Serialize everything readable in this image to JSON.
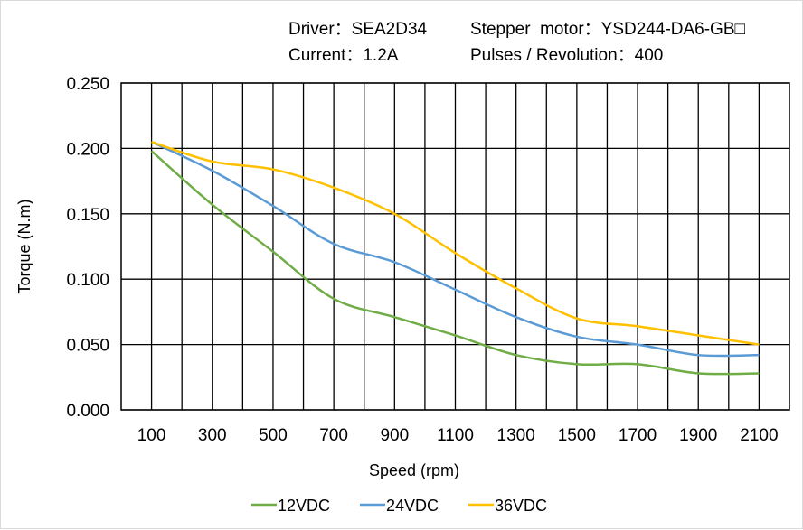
{
  "header": {
    "driver": "Driver：SEA2D34",
    "motor": "Stepper  motor：YSD244-DA6-GB□",
    "current": "Current：1.2A",
    "pulses": "Pulses / Revolution：400"
  },
  "chart_data": {
    "type": "line",
    "title": "",
    "xlabel": "Speed  (rpm)",
    "ylabel": "Torque (N.m)",
    "xlim": [
      0,
      2200
    ],
    "ylim": [
      0,
      0.25
    ],
    "xticks": [
      100,
      300,
      500,
      700,
      900,
      1100,
      1300,
      1500,
      1700,
      1900,
      2100
    ],
    "xtick_labels": [
      "100",
      "300",
      "500",
      "700",
      "900",
      "1100",
      "1300",
      "1500",
      "1700",
      "1900",
      "2100"
    ],
    "yticks": [
      0,
      0.05,
      0.1,
      0.15,
      0.2,
      0.25
    ],
    "ytick_labels": [
      "0.000",
      "0.050",
      "0.100",
      "0.150",
      "0.200",
      "0.250"
    ],
    "grid": true,
    "legend_position": "bottom",
    "x": [
      100,
      300,
      500,
      700,
      900,
      1100,
      1300,
      1500,
      1700,
      1900,
      2100
    ],
    "series": [
      {
        "name": "12VDC",
        "color": "#70ad47",
        "values": [
          0.198,
          0.157,
          0.121,
          0.085,
          0.071,
          0.057,
          0.042,
          0.035,
          0.035,
          0.028,
          0.028
        ]
      },
      {
        "name": "24VDC",
        "color": "#5b9bd5",
        "values": [
          0.205,
          0.183,
          0.156,
          0.127,
          0.113,
          0.092,
          0.071,
          0.056,
          0.05,
          0.042,
          0.042
        ]
      },
      {
        "name": "36VDC",
        "color": "#ffc000",
        "values": [
          0.205,
          0.19,
          0.184,
          0.17,
          0.15,
          0.12,
          0.093,
          0.07,
          0.064,
          0.057,
          0.05
        ]
      }
    ]
  }
}
